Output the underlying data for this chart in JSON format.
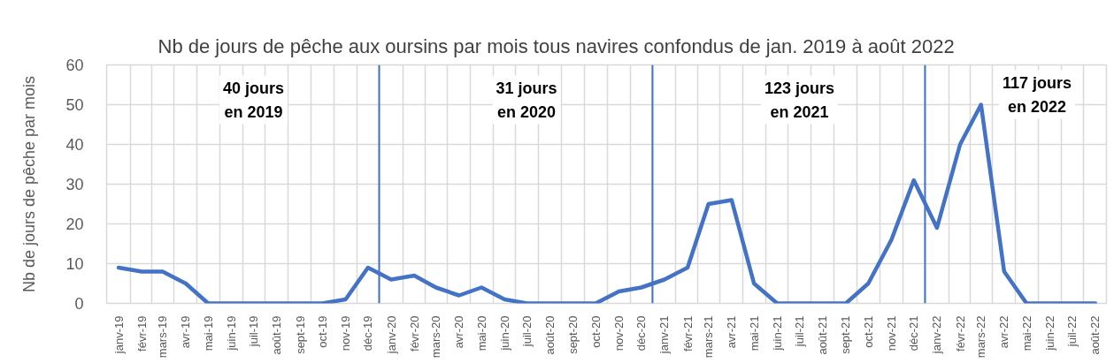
{
  "chart_data": {
    "type": "line",
    "title": "Nb de jours de pêche aux oursins par mois tous navires confondus de jan. 2019 à août 2022",
    "ylabel": "Nb de jours de pêche par mois",
    "x": [
      "2019-01",
      "2019-02",
      "2019-03",
      "2019-04",
      "2019-05",
      "2019-06",
      "2019-07",
      "2019-08",
      "2019-09",
      "2019-10",
      "2019-11",
      "2019-12",
      "2020-01",
      "2020-02",
      "2020-03",
      "2020-04",
      "2020-05",
      "2020-06",
      "2020-07",
      "2020-08",
      "2020-09",
      "2020-10",
      "2020-11",
      "2020-12",
      "2021-01",
      "2021-02",
      "2021-03",
      "2021-04",
      "2021-05",
      "2021-06",
      "2021-07",
      "2021-08",
      "2021-09",
      "2021-10",
      "2021-11",
      "2021-12",
      "2022-01",
      "2022-02",
      "2022-03",
      "2022-04",
      "2022-05",
      "2022-06",
      "2022-07",
      "2022-08"
    ],
    "values": [
      9,
      8,
      8,
      5,
      0,
      0,
      0,
      0,
      0,
      0,
      1,
      9,
      6,
      7,
      4,
      2,
      4,
      1,
      0,
      0,
      0,
      0,
      3,
      4,
      6,
      9,
      25,
      26,
      5,
      0,
      0,
      0,
      0,
      5,
      16,
      31,
      19,
      40,
      50,
      8,
      0,
      0,
      0,
      0
    ],
    "color": "#4472c4",
    "xlim": [
      "2018-12-16",
      "2022-08-16"
    ],
    "xticks": [
      {
        "value": "2019-01",
        "label": "janv-19"
      },
      {
        "value": "2019-02",
        "label": "févr-19"
      },
      {
        "value": "2019-03",
        "label": "mars-19"
      },
      {
        "value": "2019-04",
        "label": "avr-19"
      },
      {
        "value": "2019-05",
        "label": "mai-19"
      },
      {
        "value": "2019-06",
        "label": "juin-19"
      },
      {
        "value": "2019-07",
        "label": "juil-19"
      },
      {
        "value": "2019-08",
        "label": "août-19"
      },
      {
        "value": "2019-09",
        "label": "sept-19"
      },
      {
        "value": "2019-10",
        "label": "oct-19"
      },
      {
        "value": "2019-11",
        "label": "nov-19"
      },
      {
        "value": "2019-12",
        "label": "déc-19"
      },
      {
        "value": "2020-01",
        "label": "janv-20"
      },
      {
        "value": "2020-02",
        "label": "févr-20"
      },
      {
        "value": "2020-03",
        "label": "mars-20"
      },
      {
        "value": "2020-04",
        "label": "avr-20"
      },
      {
        "value": "2020-05",
        "label": "mai-20"
      },
      {
        "value": "2020-06",
        "label": "juin-20"
      },
      {
        "value": "2020-07",
        "label": "juil-20"
      },
      {
        "value": "2020-08",
        "label": "août-20"
      },
      {
        "value": "2020-09",
        "label": "sept-20"
      },
      {
        "value": "2020-10",
        "label": "oct-20"
      },
      {
        "value": "2020-11",
        "label": "nov-20"
      },
      {
        "value": "2020-12",
        "label": "déc-20"
      },
      {
        "value": "2021-01",
        "label": "janv-21"
      },
      {
        "value": "2021-02",
        "label": "févr-21"
      },
      {
        "value": "2021-03",
        "label": "mars-21"
      },
      {
        "value": "2021-04",
        "label": "avr-21"
      },
      {
        "value": "2021-05",
        "label": "mai-21"
      },
      {
        "value": "2021-06",
        "label": "juin-21"
      },
      {
        "value": "2021-07",
        "label": "juil-21"
      },
      {
        "value": "2021-08",
        "label": "août-21"
      },
      {
        "value": "2021-09",
        "label": "sept-21"
      },
      {
        "value": "2021-10",
        "label": "oct-21"
      },
      {
        "value": "2021-11",
        "label": "nov-21"
      },
      {
        "value": "2021-12",
        "label": "déc-21"
      },
      {
        "value": "2022-01",
        "label": "janv-22"
      },
      {
        "value": "2022-02",
        "label": "févr-22"
      },
      {
        "value": "2022-03",
        "label": "mars-22"
      },
      {
        "value": "2022-04",
        "label": "avr-22"
      },
      {
        "value": "2022-05",
        "label": "mai-22"
      },
      {
        "value": "2022-06",
        "label": "juin-22"
      },
      {
        "value": "2022-07",
        "label": "juil-22"
      },
      {
        "value": "2022-08",
        "label": "août-22"
      }
    ],
    "ylim": [
      0,
      60
    ],
    "yticks": [
      0,
      10,
      20,
      30,
      40,
      50,
      60
    ],
    "grid": true,
    "ref_lines": [
      {
        "axis": "x",
        "value": "2019-12-16",
        "color": "#4472c4"
      },
      {
        "axis": "x",
        "value": "2020-12-16",
        "color": "#4472c4"
      },
      {
        "axis": "x",
        "value": "2021-12-16",
        "color": "#4472c4"
      }
    ],
    "annotations": [
      "40 jours\nen 2019",
      "31 jours\nen 2020",
      "123 jours\nen 2021",
      "117 jours\nen 2022"
    ]
  }
}
